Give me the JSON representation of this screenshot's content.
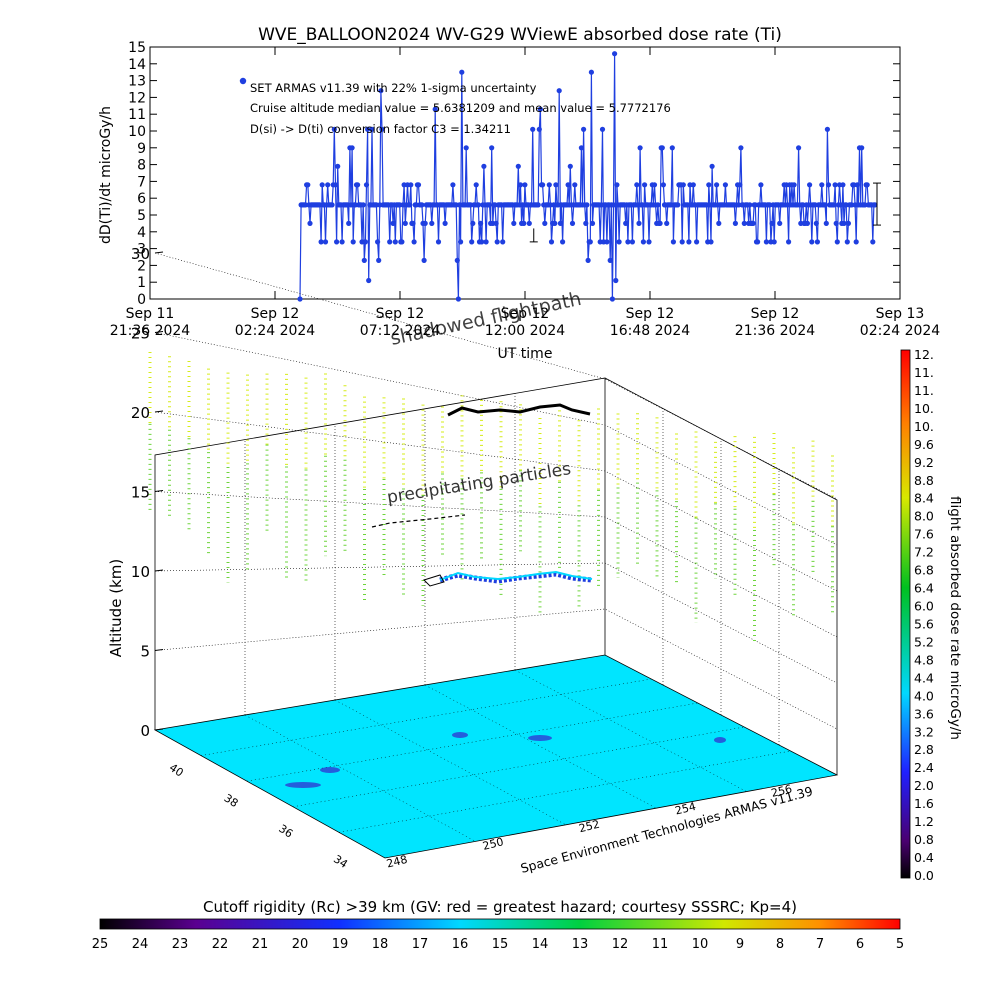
{
  "chart_data": [
    {
      "type": "line",
      "title": "WVE_BALLOON2024 WV-G29 WViewE absorbed dose rate (Ti)",
      "xlabel": "UT time",
      "ylabel": "dD(Ti)/dt microGy/h",
      "ylim": [
        0,
        15
      ],
      "yticks": [
        "0",
        "1",
        "2",
        "3",
        "4",
        "5",
        "6",
        "7",
        "8",
        "9",
        "10",
        "11",
        "12",
        "13",
        "14",
        "15"
      ],
      "xticks": [
        {
          "date": "Sep 11",
          "time": "21:36 2024"
        },
        {
          "date": "Sep 12",
          "time": "02:24 2024"
        },
        {
          "date": "Sep 12",
          "time": "07:12 2024"
        },
        {
          "date": "Sep 12",
          "time": "12:00 2024"
        },
        {
          "date": "Sep 12",
          "time": "16:48 2024"
        },
        {
          "date": "Sep 12",
          "time": "21:36 2024"
        },
        {
          "date": "Sep 13",
          "time": "02:24 2024"
        }
      ],
      "annotations": [
        "SET ARMAS v11.39 with 22% 1-sigma uncertainty",
        "Cruise altitude median value = 5.6381209 and mean value = 5.7772176",
        "D(si) -> D(ti) conversion factor C3 = 1.34211"
      ],
      "series_color": "#1f3fe0",
      "error_bar": {
        "value": 5.6,
        "low": 4.4,
        "high": 6.9
      },
      "seed": 7,
      "levels": [
        3.4,
        4.5,
        5.6,
        6.8
      ],
      "spikes": [
        9.0,
        7.9,
        10.1,
        11.3,
        12.4,
        13.5,
        14.6
      ],
      "dips": [
        0,
        1.1,
        2.3
      ],
      "range_in_ticks": [
        1.2,
        5.8
      ]
    },
    {
      "type": "scatter",
      "title": "",
      "zlabel": "Altitude (km)",
      "zticks": [
        "0",
        "5",
        "10",
        "15",
        "20",
        "25",
        "30"
      ],
      "lat_ticks": [
        "40",
        "38",
        "36",
        "34"
      ],
      "lon_ticks": [
        "248",
        "250",
        "252",
        "254",
        "256"
      ],
      "labels": [
        "shadowed flightpath",
        "precipitating particles"
      ],
      "credit": "Space Environment Technologies ARMAS v11.39",
      "floor_color": "#00e5ff"
    }
  ],
  "colorbars": {
    "dose": {
      "label": "flight absorbed dose rate microGy/h",
      "ticks": [
        "12.",
        "11.",
        "11.",
        "10.",
        "10.",
        "9.6",
        "9.2",
        "8.8",
        "8.4",
        "8.0",
        "7.6",
        "7.2",
        "6.8",
        "6.4",
        "6.0",
        "5.6",
        "5.2",
        "4.8",
        "4.4",
        "4.0",
        "3.6",
        "3.2",
        "2.8",
        "2.4",
        "2.0",
        "1.6",
        "1.2",
        "0.8",
        "0.4",
        "0.0"
      ]
    },
    "rigidity": {
      "label": "Cutoff rigidity (Rc) >39 km (GV: red = greatest hazard; courtesy SSSRC; Kp=4)",
      "ticks": [
        "25",
        "24",
        "23",
        "22",
        "21",
        "20",
        "19",
        "18",
        "17",
        "16",
        "15",
        "14",
        "13",
        "12",
        "11",
        "10",
        "9",
        "8",
        "7",
        "6",
        "5"
      ]
    }
  }
}
